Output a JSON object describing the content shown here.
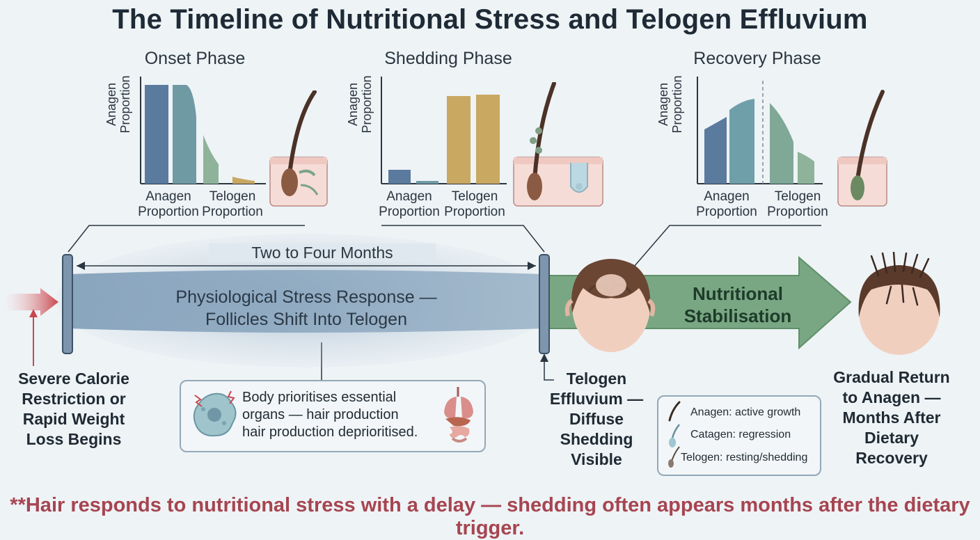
{
  "title": "The Timeline of Nutritional Stress and Telogen Effluvium",
  "phases": [
    {
      "title": "Onset Phase",
      "ylabel": "Anagen Proportion",
      "ticks": [
        "Anagen Proportion",
        "Telogen Proportion"
      ]
    },
    {
      "title": "Shedding Phase",
      "ylabel": "Anagen Proportion",
      "ticks": [
        "Anagen Proportion",
        "Telogen Proportion"
      ]
    },
    {
      "title": "Recovery Phase",
      "ylabel": "Anagen Proportion",
      "ticks": [
        "Anagen Proportion",
        "Telogen Proportion"
      ]
    }
  ],
  "timeline": {
    "duration_label": "Two to Four Months",
    "band_text": [
      "Physiological Stress Response —",
      "Follicles Shift Into Telogen"
    ],
    "arrow_text": [
      "Nutritional",
      "Stabilisation"
    ]
  },
  "captions": {
    "start": [
      "Severe Calorie",
      "Restriction or",
      "Rapid Weight",
      "Loss Begins"
    ],
    "shedding": [
      "Telogen",
      "Effluvium —",
      "Diffuse",
      "Shedding",
      "Visible"
    ],
    "end": [
      "Gradual Return",
      "to Anagen —",
      "Months After",
      "Dietary Recovery"
    ]
  },
  "body_note": [
    "Body prioritises essential",
    "organs — hair production",
    "hair production deprioritised."
  ],
  "legend": [
    {
      "label": "Anagen: active growth",
      "icon": "anagen-hair-icon"
    },
    {
      "label": "Catagen: regression",
      "icon": "catagen-hair-icon"
    },
    {
      "label": "Telogen: resting/shedding",
      "icon": "telogen-hair-icon"
    }
  ],
  "footer": "**Hair responds to nutritional stress with a delay — shedding often appears months after the dietary trigger.",
  "colors": {
    "anagen_blue": "#5a7a9e",
    "teal": "#6f9fa8",
    "sage": "#8fb39a",
    "gold": "#c9a862",
    "band_blue": "#7f9db8",
    "arrow_green": "#76a47f",
    "trigger_red": "#c8484e",
    "footer_red": "#a64550"
  }
}
